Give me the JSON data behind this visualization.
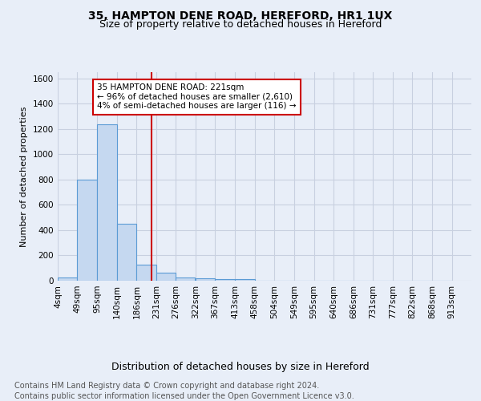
{
  "title1": "35, HAMPTON DENE ROAD, HEREFORD, HR1 1UX",
  "title2": "Size of property relative to detached houses in Hereford",
  "xlabel": "Distribution of detached houses by size in Hereford",
  "ylabel": "Number of detached properties",
  "bin_labels": [
    "4sqm",
    "49sqm",
    "95sqm",
    "140sqm",
    "186sqm",
    "231sqm",
    "276sqm",
    "322sqm",
    "367sqm",
    "413sqm",
    "458sqm",
    "504sqm",
    "549sqm",
    "595sqm",
    "640sqm",
    "686sqm",
    "731sqm",
    "777sqm",
    "822sqm",
    "868sqm",
    "913sqm"
  ],
  "bin_edges": [
    4,
    49,
    95,
    140,
    186,
    231,
    276,
    322,
    367,
    413,
    458,
    504,
    549,
    595,
    640,
    686,
    731,
    777,
    822,
    868,
    913
  ],
  "bar_heights": [
    25,
    800,
    1240,
    450,
    130,
    65,
    25,
    20,
    15,
    15,
    0,
    0,
    0,
    0,
    0,
    0,
    0,
    0,
    0,
    0
  ],
  "bar_color": "#c5d8f0",
  "bar_edge_color": "#5b9bd5",
  "vline_x": 221,
  "vline_color": "#cc0000",
  "annotation_text": "35 HAMPTON DENE ROAD: 221sqm\n← 96% of detached houses are smaller (2,610)\n4% of semi-detached houses are larger (116) →",
  "annotation_box_color": "#cc0000",
  "ylim": [
    0,
    1650
  ],
  "yticks": [
    0,
    200,
    400,
    600,
    800,
    1000,
    1200,
    1400,
    1600
  ],
  "footnote1": "Contains HM Land Registry data © Crown copyright and database right 2024.",
  "footnote2": "Contains public sector information licensed under the Open Government Licence v3.0.",
  "bg_color": "#e8eef8",
  "plot_bg_color": "#e8eef8",
  "title1_fontsize": 10,
  "title2_fontsize": 9,
  "xlabel_fontsize": 9,
  "ylabel_fontsize": 8,
  "footnote_fontsize": 7,
  "grid_color": "#c8d0e0",
  "tick_fontsize": 7.5
}
